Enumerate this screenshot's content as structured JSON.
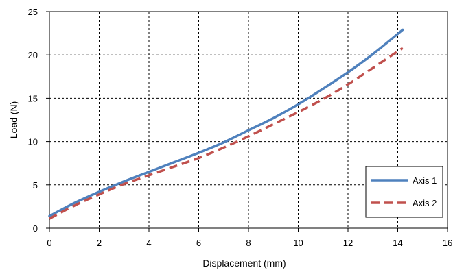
{
  "chart_data": {
    "type": "line",
    "title": "",
    "xlabel": "Displacement (mm)",
    "ylabel": "Load (N)",
    "xlim": [
      0,
      16
    ],
    "ylim": [
      0,
      25
    ],
    "xticks": [
      "0",
      "2",
      "4",
      "6",
      "8",
      "10",
      "12",
      "14",
      "16"
    ],
    "yticks": [
      "0",
      "5",
      "10",
      "15",
      "20",
      "25"
    ],
    "grid": true,
    "legend_position": "bottom-right",
    "series": [
      {
        "name": "Axis 1",
        "color": "#4F81BD",
        "dash": "solid",
        "x": [
          0,
          1,
          2,
          3,
          4,
          5,
          6,
          7,
          8,
          9,
          10,
          11,
          12,
          13,
          14.2
        ],
        "y": [
          1.4,
          2.9,
          4.2,
          5.4,
          6.5,
          7.6,
          8.7,
          9.9,
          11.3,
          12.7,
          14.3,
          16.1,
          18.0,
          20.1,
          22.9
        ]
      },
      {
        "name": "Axis 2",
        "color": "#C0504D",
        "dash": "dashed",
        "x": [
          0,
          1,
          2,
          3,
          4,
          5,
          6,
          7,
          8,
          9,
          10,
          11,
          12,
          13,
          14.2
        ],
        "y": [
          1.1,
          2.6,
          3.9,
          5.1,
          6.1,
          7.1,
          8.1,
          9.3,
          10.6,
          12.0,
          13.4,
          14.9,
          16.6,
          18.5,
          20.8
        ]
      }
    ]
  }
}
